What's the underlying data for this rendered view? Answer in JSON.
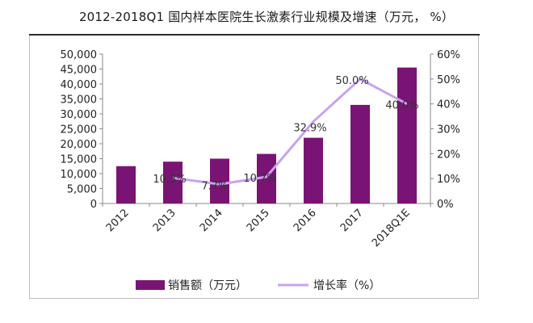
{
  "chart_data": {
    "type": "bar",
    "title": "2012-2018Q1 国内样本医院生长激素行业规模及增速（万元， %）",
    "categories": [
      "2012",
      "2013",
      "2014",
      "2015",
      "2016",
      "2017",
      "2018Q1E"
    ],
    "series": [
      {
        "name": "销售额（万元）",
        "type": "bar",
        "axis": "left",
        "color": "#7a1474",
        "values": [
          12500,
          14000,
          15000,
          16600,
          22000,
          33000,
          45500
        ]
      },
      {
        "name": "增长率（%）",
        "type": "line",
        "axis": "right",
        "color": "#c8a2f0",
        "values": [
          null,
          10.3,
          7.7,
          10.7,
          32.9,
          50.0,
          40.0
        ],
        "labels": [
          "",
          "10.3%",
          "7.7%",
          "10.7%",
          "32.9%",
          "50.0%",
          "40.0%"
        ]
      }
    ],
    "y_left": {
      "min": 0,
      "max": 50000,
      "step": 5000,
      "ticks": [
        "0",
        "5,000",
        "10,000",
        "15,000",
        "20,000",
        "25,000",
        "30,000",
        "35,000",
        "40,000",
        "45,000",
        "50,000"
      ]
    },
    "y_right": {
      "min": 0,
      "max": 60,
      "step": 10,
      "ticks": [
        "0%",
        "10%",
        "20%",
        "30%",
        "40%",
        "50%",
        "60%"
      ]
    },
    "legend_position": "bottom",
    "grid": false
  }
}
